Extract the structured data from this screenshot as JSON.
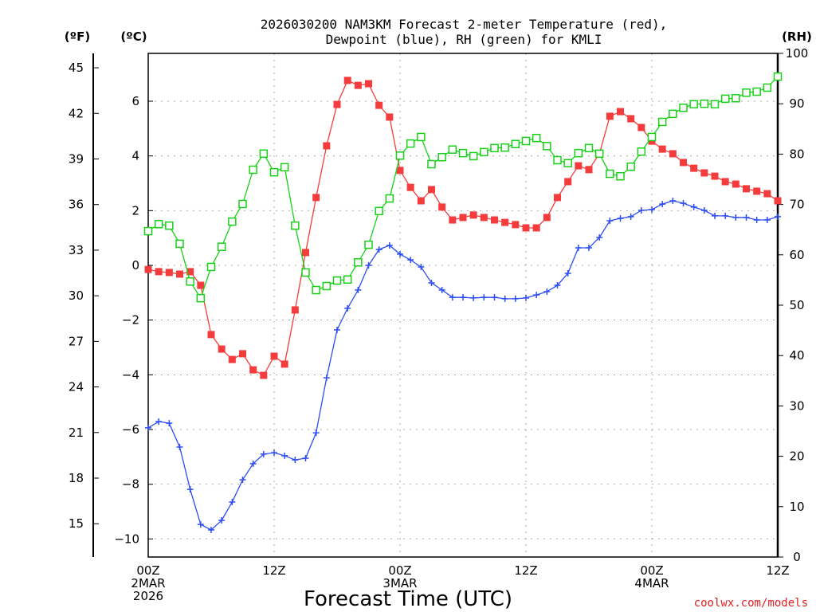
{
  "chart_data": {
    "type": "line",
    "title_line1": "2026030200 NAM3KM Forecast 2-meter Temperature (red),",
    "title_line2": "Dewpoint (blue), RH (green) for KMLI",
    "xlabel": "Forecast Time (UTC)",
    "unit_f": "(ºF)",
    "unit_c": "(ºC)",
    "unit_rh": "(RH)",
    "credit": "coolwx.com/models",
    "x_hours": [
      0,
      1,
      2,
      3,
      4,
      5,
      6,
      7,
      8,
      9,
      10,
      11,
      12,
      13,
      14,
      15,
      16,
      17,
      18,
      19,
      20,
      21,
      22,
      23,
      24,
      25,
      26,
      27,
      28,
      29,
      30,
      31,
      32,
      33,
      34,
      35,
      36,
      37,
      38,
      39,
      40,
      41,
      42,
      43,
      44,
      45,
      46,
      47,
      48,
      49,
      50,
      51,
      52,
      53,
      54,
      55,
      56,
      57,
      58,
      59,
      60
    ],
    "x_ticks": [
      {
        "hour": 0,
        "label": "00Z",
        "date": "2MAR",
        "year": "2026"
      },
      {
        "hour": 12,
        "label": "12Z"
      },
      {
        "hour": 24,
        "label": "00Z",
        "date": "3MAR"
      },
      {
        "hour": 36,
        "label": "12Z"
      },
      {
        "hour": 48,
        "label": "00Z",
        "date": "4MAR"
      },
      {
        "hour": 60,
        "label": "12Z"
      }
    ],
    "ylim_c": [
      -11.0,
      7.8
    ],
    "yticks_c": [
      "6",
      "4",
      "2",
      "0",
      "−2",
      "−4",
      "−6",
      "−8",
      "−10"
    ],
    "yticks_c_values": [
      6,
      4,
      2,
      0,
      -2,
      -4,
      -6,
      -8,
      -10
    ],
    "yticks_f": [
      "45",
      "42",
      "39",
      "36",
      "33",
      "30",
      "27",
      "24",
      "21",
      "18",
      "15"
    ],
    "yticks_f_values": [
      45,
      42,
      39,
      36,
      33,
      30,
      27,
      24,
      21,
      18,
      15
    ],
    "ylim_rh": [
      0,
      100
    ],
    "yticks_rh": [
      "100",
      "90",
      "80",
      "70",
      "60",
      "50",
      "40",
      "30",
      "20",
      "10",
      "0"
    ],
    "yticks_rh_values": [
      100,
      90,
      80,
      70,
      60,
      50,
      40,
      30,
      20,
      10,
      0
    ],
    "grid": true,
    "series": [
      {
        "name": "Temperature (°C)",
        "color": "#f43c3c",
        "axis": "c",
        "marker": "filled-square",
        "values": [
          -0.15,
          -0.23,
          -0.26,
          -0.32,
          -0.23,
          -0.73,
          -2.53,
          -3.06,
          -3.44,
          -3.23,
          -3.82,
          -4.02,
          -3.32,
          -3.61,
          -1.63,
          0.47,
          2.48,
          4.37,
          5.88,
          6.76,
          6.58,
          6.64,
          5.85,
          5.42,
          3.47,
          2.85,
          2.36,
          2.77,
          2.13,
          1.66,
          1.75,
          1.84,
          1.75,
          1.66,
          1.57,
          1.49,
          1.37,
          1.37,
          1.75,
          2.48,
          3.06,
          3.64,
          3.5,
          4.08,
          5.45,
          5.62,
          5.36,
          5.04,
          4.54,
          4.25,
          4.08,
          3.76,
          3.55,
          3.38,
          3.26,
          3.06,
          2.97,
          2.8,
          2.71,
          2.62,
          2.36
        ]
      },
      {
        "name": "Dewpoint (°C)",
        "color": "#2c4cf4",
        "axis": "c",
        "marker": "plus",
        "values": [
          -5.94,
          -5.71,
          -5.77,
          -6.64,
          -8.19,
          -9.47,
          -9.67,
          -9.32,
          -8.65,
          -7.84,
          -7.25,
          -6.9,
          -6.85,
          -6.96,
          -7.11,
          -7.05,
          -6.12,
          -4.11,
          -2.36,
          -1.57,
          -0.9,
          0.0,
          0.58,
          0.73,
          0.41,
          0.2,
          -0.06,
          -0.64,
          -0.9,
          -1.17,
          -1.17,
          -1.19,
          -1.17,
          -1.17,
          -1.22,
          -1.22,
          -1.19,
          -1.08,
          -0.96,
          -0.73,
          -0.29,
          0.64,
          0.64,
          1.02,
          1.63,
          1.72,
          1.78,
          2.01,
          2.04,
          2.24,
          2.36,
          2.27,
          2.13,
          2.01,
          1.81,
          1.81,
          1.75,
          1.75,
          1.66,
          1.66,
          1.78
        ]
      },
      {
        "name": "RH (%)",
        "color": "#18d018",
        "axis": "rh",
        "marker": "open-square",
        "values": [
          64.7,
          66.1,
          65.8,
          62.2,
          54.7,
          51.4,
          57.6,
          61.6,
          66.6,
          70.1,
          76.9,
          80.1,
          76.4,
          77.4,
          65.8,
          56.5,
          53.0,
          53.8,
          54.9,
          55.1,
          58.5,
          62.0,
          68.7,
          71.2,
          79.7,
          82.1,
          83.4,
          78.0,
          79.4,
          80.9,
          80.2,
          79.6,
          80.4,
          81.2,
          81.3,
          82.0,
          82.6,
          83.2,
          81.6,
          78.8,
          78.2,
          80.2,
          81.2,
          80.1,
          76.1,
          75.6,
          77.5,
          80.5,
          83.4,
          86.4,
          88.0,
          89.2,
          89.9,
          90.0,
          89.9,
          91.0,
          91.1,
          92.2,
          92.4,
          93.2,
          95.4
        ]
      }
    ]
  }
}
